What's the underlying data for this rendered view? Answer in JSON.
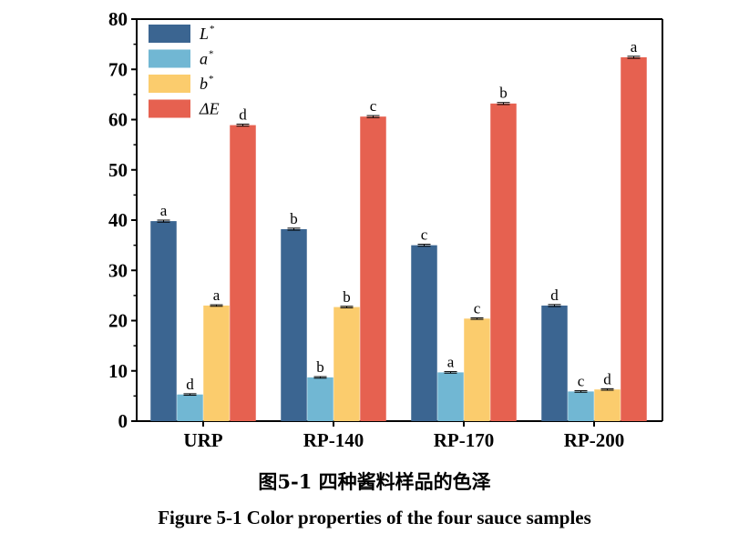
{
  "chart_data": {
    "type": "bar",
    "categories": [
      "URP",
      "RP-140",
      "RP-170",
      "RP-200"
    ],
    "series": [
      {
        "name_base": "L",
        "name_sup": "*",
        "color": "#3B6591",
        "values": [
          39.8,
          38.2,
          35.0,
          23.0
        ],
        "errors": [
          0.2,
          0.2,
          0.2,
          0.2
        ],
        "letters": [
          "a",
          "b",
          "c",
          "d"
        ]
      },
      {
        "name_base": "a",
        "name_sup": "*",
        "color": "#71B7D3",
        "values": [
          5.3,
          8.7,
          9.7,
          5.9
        ],
        "errors": [
          0.15,
          0.15,
          0.15,
          0.15
        ],
        "letters": [
          "d",
          "b",
          "a",
          "c"
        ]
      },
      {
        "name_base": "b",
        "name_sup": "*",
        "color": "#FBCC6D",
        "values": [
          23.0,
          22.7,
          20.4,
          6.3
        ],
        "errors": [
          0.15,
          0.15,
          0.15,
          0.15
        ],
        "letters": [
          "a",
          "b",
          "c",
          "d"
        ]
      },
      {
        "name_base": "ΔE",
        "name_sup": "",
        "color": "#E66150",
        "values": [
          58.9,
          60.6,
          63.2,
          72.4
        ],
        "errors": [
          0.2,
          0.2,
          0.2,
          0.2
        ],
        "letters": [
          "d",
          "c",
          "b",
          "a"
        ]
      }
    ],
    "y_ticks": [
      "0",
      "10",
      "20",
      "30",
      "40",
      "50",
      "60",
      "70",
      "80"
    ],
    "ylim": [
      0,
      80
    ],
    "grid": false,
    "legend": "top-left"
  },
  "caption": {
    "cn": "图5-1  四种酱料样品的色泽",
    "en": "Figure 5-1 Color properties of the four sauce samples"
  }
}
